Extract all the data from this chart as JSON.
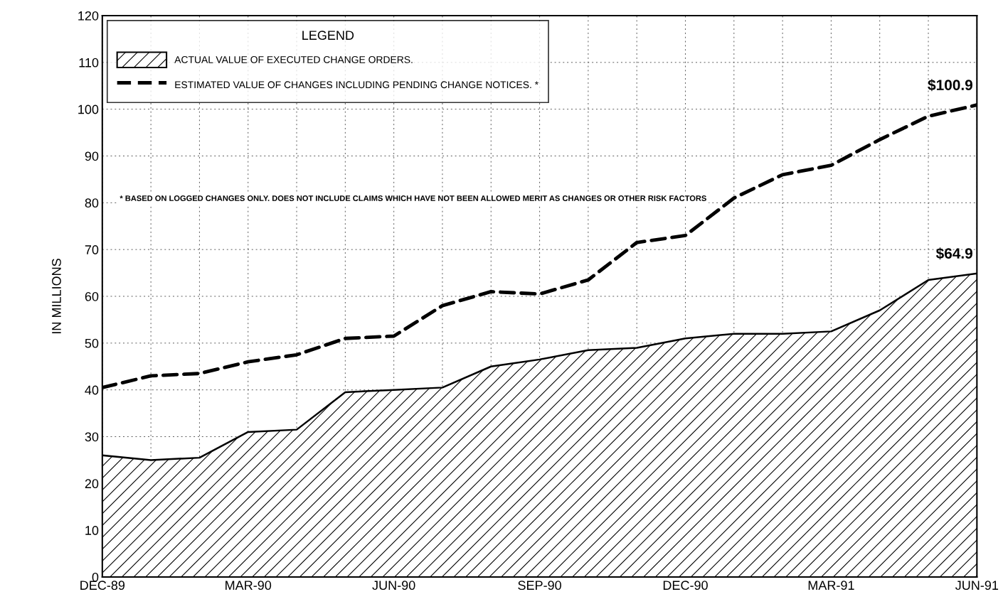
{
  "chart_data": {
    "type": "line",
    "ylabel": "IN MILLIONS",
    "categories": [
      "DEC-89",
      null,
      null,
      "MAR-90",
      null,
      null,
      "JUN-90",
      null,
      null,
      "SEP-90",
      null,
      null,
      "DEC-90",
      null,
      null,
      "MAR-91",
      null,
      null,
      "JUN-91"
    ],
    "series": [
      {
        "name": "ACTUAL VALUE OF EXECUTED CHANGE ORDERS.",
        "type": "area",
        "color": "#000000",
        "values": [
          26,
          25,
          25.5,
          31,
          31.5,
          39.5,
          40,
          40.5,
          45,
          46.5,
          48.5,
          49,
          51,
          52,
          52,
          52.5,
          57,
          63.5,
          64.9
        ]
      },
      {
        "name": "ESTIMATED VALUE OF CHANGES INCLUDING PENDING CHANGE NOTICES. *",
        "line_style": "dashed",
        "color": "#000000",
        "values": [
          40.5,
          43,
          43.5,
          46,
          47.5,
          51,
          51.5,
          58,
          61,
          60.5,
          63.5,
          71.5,
          73,
          81,
          86,
          88,
          93.5,
          98.5,
          100.9
        ]
      }
    ],
    "ylim": [
      0,
      120
    ],
    "yticks": [
      0,
      10,
      20,
      30,
      40,
      50,
      60,
      70,
      80,
      90,
      100,
      110,
      120
    ],
    "grid": true,
    "legend": "top left",
    "legend_title": "LEGEND",
    "annotations": [
      {
        "text": "$100.9",
        "x": "JUN-91",
        "y": 100.9
      },
      {
        "text": "$64.9",
        "x": "JUN-91",
        "y": 64.9
      },
      "* BASED ON LOGGED CHANGES ONLY. DOES NOT INCLUDE CLAIMS WHICH HAVE NOT BEEN ALLOWED MERIT AS CHANGES OR OTHER RISK FACTORS"
    ]
  }
}
